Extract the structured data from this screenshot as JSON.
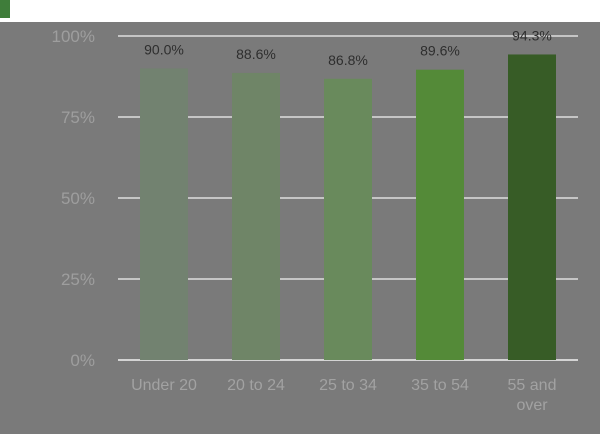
{
  "chart_data": {
    "type": "bar",
    "title": "",
    "xlabel": "",
    "ylabel": "",
    "categories": [
      [
        "Under 20"
      ],
      [
        "20 to 24"
      ],
      [
        "25 to 34"
      ],
      [
        "35 to 54"
      ],
      [
        "55 and",
        "over"
      ]
    ],
    "values": [
      90.0,
      88.6,
      86.8,
      89.6,
      94.3
    ],
    "value_labels": [
      "90.0%",
      "88.6%",
      "86.8%",
      "89.6%",
      "94.3%"
    ],
    "ylim": [
      0,
      100
    ],
    "yticks": [
      0,
      25,
      50,
      75,
      100
    ],
    "ytick_labels": [
      "0%",
      "25%",
      "50%",
      "75%",
      "100%"
    ],
    "grid": true,
    "legend": "none",
    "colors": {
      "background": "#7a7a7a",
      "gridline": "#f2f2f2",
      "bars": [
        "#728270",
        "#6f8567",
        "#698a5c",
        "#548a38",
        "#375c26"
      ],
      "title_strip": "#ffffff",
      "title_marker": "#3f7d3a"
    }
  }
}
